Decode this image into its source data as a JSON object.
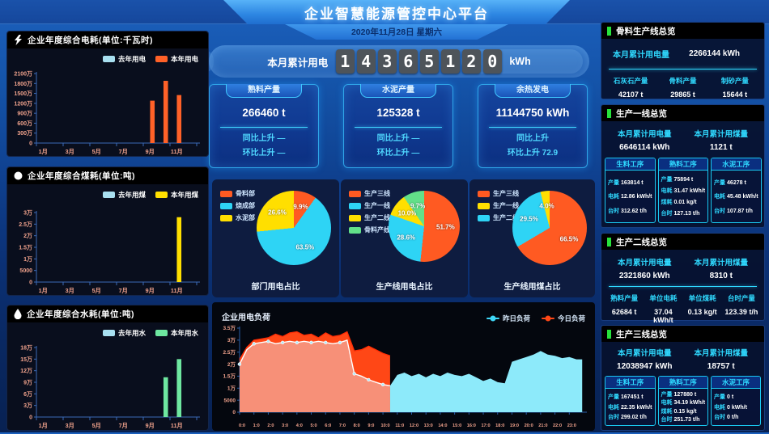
{
  "app": {
    "title": "企业智慧能源管控中心平台",
    "date": "2020年11月28日 星期六"
  },
  "counter": {
    "label": "本月累计用电",
    "digits": [
      "1",
      "4",
      "3",
      "6",
      "5",
      "1",
      "2",
      "0"
    ],
    "unit": "kWh"
  },
  "stat_cards": [
    {
      "title": "熟料产量",
      "value": "266460 t",
      "yoy": "同比上升 —",
      "mom": "环比上升 —"
    },
    {
      "title": "水泥产量",
      "value": "125328 t",
      "yoy": "同比上升 —",
      "mom": "环比上升 —"
    },
    {
      "title": "余热发电",
      "value": "11144750 kWh",
      "yoy": "同比上升",
      "mom": "环比上升 72.9"
    }
  ],
  "chart_data": [
    {
      "type": "bar",
      "title": "企业年度综合电耗(单位:千瓦时)",
      "icon": "lightning-icon",
      "categories": [
        "1月",
        "2月",
        "3月",
        "4月",
        "5月",
        "6月",
        "7月",
        "8月",
        "9月",
        "10月",
        "11月",
        "12月"
      ],
      "x_tick_labels": [
        "1月",
        "3月",
        "5月",
        "7月",
        "9月",
        "11月"
      ],
      "ymax": 21000000,
      "yticks": [
        "0",
        "300万",
        "600万",
        "900万",
        "1200万",
        "1500万",
        "1800万",
        "2100万"
      ],
      "series": [
        {
          "name": "去年用电",
          "color": "#a8dff0",
          "values": [
            0,
            0,
            0,
            0,
            0,
            0,
            0,
            0,
            0,
            0,
            0,
            0
          ]
        },
        {
          "name": "本年用电",
          "color": "#ff6128",
          "values": [
            0,
            0,
            0,
            0,
            0,
            0,
            0,
            0,
            12800000,
            18800000,
            14500000,
            0
          ]
        }
      ]
    },
    {
      "type": "bar",
      "title": "企业年度综合煤耗(单位:吨)",
      "icon": "coal-icon",
      "categories": [
        "1月",
        "2月",
        "3月",
        "4月",
        "5月",
        "6月",
        "7月",
        "8月",
        "9月",
        "10月",
        "11月",
        "12月"
      ],
      "x_tick_labels": [
        "1月",
        "3月",
        "5月",
        "7月",
        "9月",
        "11月"
      ],
      "ymax": 30000,
      "yticks": [
        "0",
        "5000",
        "1万",
        "1.5万",
        "2万",
        "2.5万",
        "3万"
      ],
      "series": [
        {
          "name": "去年用煤",
          "color": "#a8dff0",
          "values": [
            0,
            0,
            0,
            0,
            0,
            0,
            0,
            0,
            0,
            0,
            0,
            0
          ]
        },
        {
          "name": "本年用煤",
          "color": "#ffdf00",
          "values": [
            0,
            0,
            0,
            0,
            0,
            0,
            0,
            0,
            0,
            0,
            28000,
            0
          ]
        }
      ]
    },
    {
      "type": "bar",
      "title": "企业年度综合水耗(单位:吨)",
      "icon": "water-drop-icon",
      "categories": [
        "1月",
        "2月",
        "3月",
        "4月",
        "5月",
        "6月",
        "7月",
        "8月",
        "9月",
        "10月",
        "11月",
        "12月"
      ],
      "x_tick_labels": [
        "1月",
        "3月",
        "5月",
        "7月",
        "9月",
        "11月"
      ],
      "ymax": 180000,
      "yticks": [
        "0",
        "3万",
        "6万",
        "9万",
        "12万",
        "15万",
        "18万"
      ],
      "series": [
        {
          "name": "去年用水",
          "color": "#a8dff0",
          "values": [
            0,
            0,
            0,
            0,
            0,
            0,
            0,
            0,
            0,
            0,
            0,
            0
          ]
        },
        {
          "name": "本年用水",
          "color": "#6ee7a0",
          "values": [
            0,
            0,
            0,
            0,
            0,
            0,
            0,
            0,
            0,
            103000,
            150000,
            0
          ]
        }
      ]
    },
    {
      "type": "pie",
      "title": "部门用电占比",
      "size": 92,
      "legend": [
        {
          "label": "骨料部",
          "color": "#ff5a22"
        },
        {
          "label": "烧成部",
          "color": "#2ed4f5"
        },
        {
          "label": "水泥部",
          "color": "#ffdf00"
        }
      ],
      "slices": [
        {
          "label": "骨料部",
          "value": 9.9,
          "pct": "9.9%",
          "color": "#ff5a22"
        },
        {
          "label": "烧成部",
          "value": 63.5,
          "pct": "63.5%",
          "color": "#2ed4f5"
        },
        {
          "label": "水泥部",
          "value": 26.6,
          "pct": "26.6%",
          "color": "#ffdf00"
        }
      ]
    },
    {
      "type": "pie",
      "title": "生产线用电占比",
      "size": 88,
      "legend": [
        {
          "label": "生产三线",
          "color": "#ff5a22"
        },
        {
          "label": "生产一线",
          "color": "#2ed4f5"
        },
        {
          "label": "生产二线",
          "color": "#ffdf00"
        },
        {
          "label": "骨料产线",
          "color": "#62e089"
        }
      ],
      "slices": [
        {
          "label": "生产三线",
          "value": 51.7,
          "pct": "51.7%",
          "color": "#ff5a22"
        },
        {
          "label": "生产一线",
          "value": 28.6,
          "pct": "28.6%",
          "color": "#2ed4f5"
        },
        {
          "label": "生产二线",
          "value": 10.0,
          "pct": "10.0%",
          "color": "#ffdf00"
        },
        {
          "label": "骨料产线",
          "value": 9.7,
          "pct": "9.7%",
          "color": "#62e089"
        }
      ]
    },
    {
      "type": "pie",
      "title": "生产线用煤占比",
      "size": 92,
      "legend": [
        {
          "label": "生产三线",
          "color": "#ff5a22"
        },
        {
          "label": "生产一线",
          "color": "#ffdf00"
        },
        {
          "label": "生产二线",
          "color": "#2ed4f5"
        }
      ],
      "slices": [
        {
          "label": "生产三线",
          "value": 66.5,
          "pct": "66.5%",
          "color": "#ff5a22"
        },
        {
          "label": "生产二线",
          "value": 29.5,
          "pct": "29.5%",
          "color": "#2ed4f5"
        },
        {
          "label": "生产一线",
          "value": 4.0,
          "pct": "4.0%",
          "color": "#ffdf00"
        }
      ]
    },
    {
      "type": "area",
      "title": "企业用电负荷",
      "ymax": 35000,
      "yticks": [
        "0",
        "5000",
        "1万",
        "1.5万",
        "2万",
        "2.5万",
        "3万",
        "3.5万"
      ],
      "x_labels": [
        "0:0",
        "1:0",
        "2:0",
        "3:0",
        "4:0",
        "5:0",
        "6:0",
        "7:0",
        "8:0",
        "9:0",
        "10:0",
        "11:0",
        "12:0",
        "13:0",
        "14:0",
        "15:0",
        "16:0",
        "17:0",
        "18:0",
        "19:0",
        "20:0",
        "21:0",
        "22:0",
        "23:0"
      ],
      "x_step_hours": 0.5,
      "current_hour": 10.5,
      "legend": [
        {
          "label": "昨日负荷",
          "color": "#3ed8f8"
        },
        {
          "label": "今日负荷",
          "color": "#ff4716"
        }
      ],
      "yesterday": [
        20000,
        26000,
        28500,
        29000,
        29500,
        28500,
        29000,
        29500,
        29000,
        29500,
        29000,
        29500,
        29000,
        28500,
        29000,
        30000,
        16000,
        15000,
        13500,
        12500,
        11500,
        11000,
        15500,
        16500,
        15000,
        16000,
        14500,
        16000,
        15000,
        16500,
        15500,
        15000,
        16000,
        14500,
        13000,
        14000,
        12500,
        12000,
        21000,
        22000,
        23000,
        24000,
        25500,
        24000,
        23500,
        22500,
        23000,
        22000
      ],
      "today": [
        22000,
        27000,
        30000,
        30500,
        31000,
        32500,
        31500,
        33000,
        33500,
        32000,
        32500,
        31000,
        33000,
        31500,
        32000,
        33500,
        25500,
        26000,
        27500,
        26000,
        24500,
        23500
      ]
    }
  ],
  "right_panels": {
    "aggregate": {
      "title": "骨料生产线总览",
      "kv": [
        {
          "label": "本月累计用电量",
          "value": "2266144 kWh"
        }
      ],
      "cols": [
        {
          "label": "石灰石产量",
          "value": "42107 t"
        },
        {
          "label": "骨料产量",
          "value": "29865 t"
        },
        {
          "label": "制砂产量",
          "value": "15644 t"
        }
      ]
    },
    "line1": {
      "title": "生产一线总览",
      "kv": [
        {
          "label": "本月累计用电量",
          "value": "6646114 kWh"
        },
        {
          "label": "本月累计用煤量",
          "value": "1121 t"
        }
      ],
      "process": [
        {
          "title": "生料工序",
          "rows": [
            {
              "label": "产量",
              "value": "163814 t"
            },
            {
              "label": "电耗",
              "value": "12.86 kWh/t"
            },
            {
              "label": "台时",
              "value": "312.62 t/h"
            }
          ]
        },
        {
          "title": "熟料工序",
          "rows": [
            {
              "label": "产量",
              "value": "75894 t"
            },
            {
              "label": "电耗",
              "value": "31.47 kWh/t"
            },
            {
              "label": "煤耗",
              "value": "0.01 kg/t"
            },
            {
              "label": "台时",
              "value": "127.13 t/h"
            }
          ]
        },
        {
          "title": "水泥工序",
          "rows": [
            {
              "label": "产量",
              "value": "46278 t"
            },
            {
              "label": "电耗",
              "value": "45.48 kWh/t"
            },
            {
              "label": "台时",
              "value": "107.87 t/h"
            }
          ]
        }
      ]
    },
    "line2": {
      "title": "生产二线总览",
      "kv": [
        {
          "label": "本月累计用电量",
          "value": "2321860 kWh"
        },
        {
          "label": "本月累计用煤量",
          "value": "8310 t"
        }
      ],
      "cols": [
        {
          "label": "熟料产量",
          "value": "62684 t"
        },
        {
          "label": "单位电耗",
          "value": "37.04 kWh/t"
        },
        {
          "label": "单位煤耗",
          "value": "0.13 kg/t"
        },
        {
          "label": "台时产量",
          "value": "123.39 t/h"
        }
      ]
    },
    "line3": {
      "title": "生产三线总览",
      "kv": [
        {
          "label": "本月累计用电量",
          "value": "12038947 kWh"
        },
        {
          "label": "本月累计用煤量",
          "value": "18757 t"
        }
      ],
      "process": [
        {
          "title": "生料工序",
          "rows": [
            {
              "label": "产量",
              "value": "167451 t"
            },
            {
              "label": "电耗",
              "value": "22.35 kWh/t"
            },
            {
              "label": "台时",
              "value": "299.02 t/h"
            }
          ]
        },
        {
          "title": "熟料工序",
          "rows": [
            {
              "label": "产量",
              "value": "127880 t"
            },
            {
              "label": "电耗",
              "value": "34.19 kWh/t"
            },
            {
              "label": "煤耗",
              "value": "0.15 kg/t"
            },
            {
              "label": "台时",
              "value": "251.73 t/h"
            }
          ]
        },
        {
          "title": "水泥工序",
          "rows": [
            {
              "label": "产量",
              "value": "0 t"
            },
            {
              "label": "电耗",
              "value": "0 kWh/t"
            },
            {
              "label": "台时",
              "value": "0 t/h"
            }
          ]
        }
      ]
    }
  }
}
